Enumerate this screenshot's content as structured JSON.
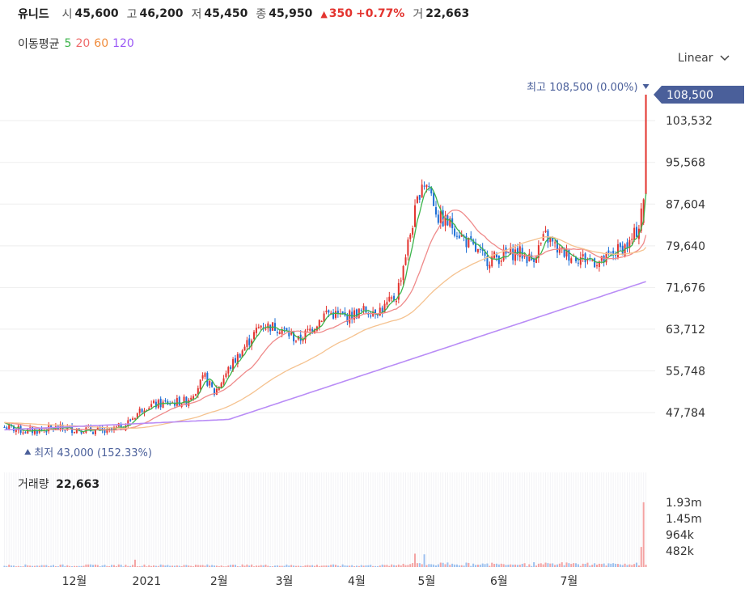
{
  "header": {
    "name": "유니드",
    "open_label": "시",
    "open": "45,600",
    "high_label": "고",
    "high": "46,200",
    "low_label": "저",
    "low": "45,450",
    "close_label": "종",
    "close": "45,950",
    "change": "350",
    "change_pct": "+0.77%",
    "volume_label": "거",
    "volume": "22,663"
  },
  "ma_legend": {
    "title": "이동평균",
    "periods": [
      {
        "label": "5",
        "color": "#3cb44b"
      },
      {
        "label": "20",
        "color": "#ef6b6b"
      },
      {
        "label": "60",
        "color": "#f08c3c"
      },
      {
        "label": "120",
        "color": "#9b59f6"
      }
    ]
  },
  "scale_select": {
    "value": "Linear"
  },
  "annotations": {
    "high_text": "최고 108,500 (0.00%)",
    "low_text": "최저 43,000 (152.33%)",
    "current_price": "108,500"
  },
  "volume_panel": {
    "title": "거래량",
    "value": "22,663"
  },
  "colors": {
    "up": "#e3342f",
    "down": "#1f6fd6",
    "price_tag": "#4a5f9a",
    "grid": "#eeeeee"
  },
  "chart_data": {
    "type": "candlestick",
    "y_ticks": [
      "47,784",
      "55,748",
      "63,712",
      "71,676",
      "79,640",
      "87,604",
      "95,568",
      "103,532"
    ],
    "y_tick_values": [
      47784,
      55748,
      63712,
      71676,
      79640,
      87604,
      95568,
      103532
    ],
    "volume_ticks": [
      "482k",
      "964k",
      "1.45m",
      "1.93m"
    ],
    "volume_tick_values": [
      482000,
      964000,
      1450000,
      1930000
    ],
    "x_ticks": [
      "12월",
      "2021",
      "2월",
      "3월",
      "4월",
      "5월",
      "6월",
      "7월"
    ],
    "x_tick_days": [
      30,
      61,
      92,
      120,
      151,
      181,
      212,
      242
    ],
    "ylim": [
      43000,
      108500
    ],
    "price_keypoints": [
      [
        0,
        45000
      ],
      [
        10,
        44200
      ],
      [
        22,
        44800
      ],
      [
        34,
        44600
      ],
      [
        44,
        44000
      ],
      [
        52,
        45500
      ],
      [
        60,
        49000
      ],
      [
        68,
        49500
      ],
      [
        78,
        50000
      ],
      [
        86,
        54500
      ],
      [
        90,
        51500
      ],
      [
        96,
        56000
      ],
      [
        104,
        61000
      ],
      [
        110,
        64500
      ],
      [
        118,
        64000
      ],
      [
        126,
        61500
      ],
      [
        132,
        64000
      ],
      [
        138,
        67000
      ],
      [
        146,
        66000
      ],
      [
        154,
        67200
      ],
      [
        162,
        67500
      ],
      [
        168,
        70000
      ],
      [
        174,
        82000
      ],
      [
        179,
        92000
      ],
      [
        182,
        91000
      ],
      [
        186,
        85000
      ],
      [
        192,
        83500
      ],
      [
        198,
        80500
      ],
      [
        206,
        77000
      ],
      [
        212,
        77500
      ],
      [
        220,
        78500
      ],
      [
        226,
        77000
      ],
      [
        232,
        81500
      ],
      [
        238,
        78500
      ],
      [
        246,
        77500
      ],
      [
        256,
        76500
      ],
      [
        262,
        78500
      ],
      [
        268,
        80000
      ],
      [
        271,
        82500
      ],
      [
        272,
        83500
      ],
      [
        273,
        87000
      ],
      [
        274,
        105000
      ],
      [
        275,
        108500
      ]
    ],
    "ma120_endpoints": [
      [
        0,
        44500
      ],
      [
        275,
        72800
      ]
    ],
    "volume_spikes": [
      [
        273,
        600000
      ],
      [
        274,
        1930000
      ],
      [
        176,
        400000
      ],
      [
        180,
        380000
      ],
      [
        56,
        220000
      ]
    ]
  }
}
